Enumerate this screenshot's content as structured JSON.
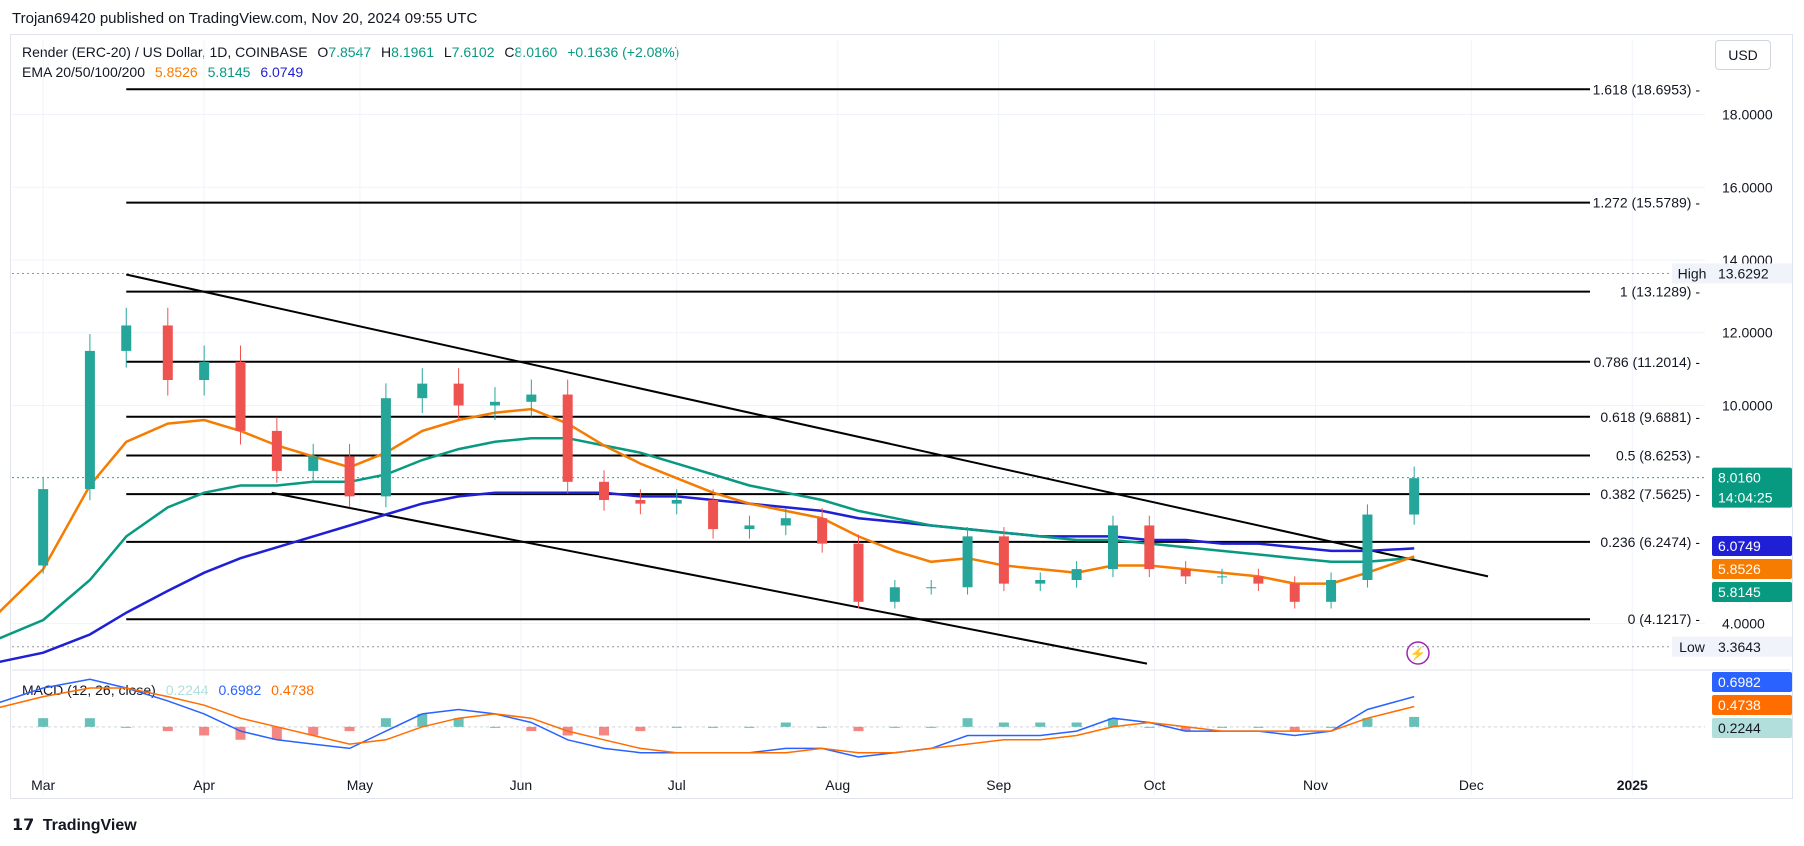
{
  "header": {
    "published": "Trojan69420 published on TradingView.com, Nov 20, 2024 09:55 UTC"
  },
  "legend": {
    "symbol": "Render (ERC-20) / US Dollar, 1D, COINBASE",
    "o_label": "O",
    "o": "7.8547",
    "h_label": "H",
    "h": "8.1961",
    "l_label": "L",
    "l": "7.6102",
    "c_label": "C",
    "c": "8.0160",
    "change": "+0.1636 (+2.08%)",
    "ema_label": "EMA 20/50/100/200",
    "ema20": "5.8526",
    "ema50": "5.8145",
    "ema100": "6.0749",
    "macd_label": "MACD (12, 26, close)",
    "macd_hist": "0.2244",
    "macd_line": "0.6982",
    "macd_signal": "0.4738"
  },
  "currency_button": "USD",
  "footer": {
    "brand": "TradingView"
  },
  "colors": {
    "up": "#26a69a",
    "down": "#ef5350",
    "ema20": "#f57c00",
    "ema50": "#089981",
    "ema100": "#1f1fd6",
    "macd": "#2962ff",
    "signal": "#ff6d00",
    "price_label": "#089981"
  },
  "chart_data": {
    "type": "line",
    "title": "Render (ERC-20) / US Dollar, 1D, COINBASE",
    "x_ticks": [
      "Mar",
      "Apr",
      "May",
      "Jun",
      "Jul",
      "Aug",
      "Sep",
      "Oct",
      "Nov",
      "Dec",
      "2025"
    ],
    "y_ticks": [
      "18.0000",
      "16.0000",
      "14.0000",
      "12.0000",
      "10.0000",
      "4.0000"
    ],
    "ylim": [
      3.0,
      19.5
    ],
    "fib_levels": [
      {
        "label": "1.618 (18.6953)",
        "value": 18.6953
      },
      {
        "label": "1.272 (15.5789)",
        "value": 15.5789
      },
      {
        "label": "1 (13.1289)",
        "value": 13.1289
      },
      {
        "label": "0.786 (11.2014)",
        "value": 11.2014
      },
      {
        "label": "0.618 (9.6881)",
        "value": 9.6881
      },
      {
        "label": "0.5 (8.6253)",
        "value": 8.6253
      },
      {
        "label": "0.382 (7.5625)",
        "value": 7.5625
      },
      {
        "label": "0.236 (6.2474)",
        "value": 6.2474
      },
      {
        "label": "0 (4.1217)",
        "value": 4.1217
      }
    ],
    "high": {
      "label": "High",
      "value": "13.6292"
    },
    "low": {
      "label": "Low",
      "value": "3.3643"
    },
    "last_price": "8.0160",
    "countdown": "14:04:25",
    "ema_labels": [
      {
        "value": "6.0749",
        "color": "#1f1fd6",
        "v": 6.0749
      },
      {
        "value": "5.8526",
        "color": "#f57c00",
        "v": 5.8526
      },
      {
        "value": "5.8145",
        "color": "#089981",
        "v": 5.8145
      }
    ],
    "dates": [
      "2024-02-20",
      "2024-03-01",
      "2024-03-10",
      "2024-03-17",
      "2024-03-25",
      "2024-04-01",
      "2024-04-08",
      "2024-04-15",
      "2024-04-22",
      "2024-04-29",
      "2024-05-06",
      "2024-05-13",
      "2024-05-20",
      "2024-05-27",
      "2024-06-03",
      "2024-06-10",
      "2024-06-17",
      "2024-06-24",
      "2024-07-01",
      "2024-07-08",
      "2024-07-15",
      "2024-07-22",
      "2024-07-29",
      "2024-08-05",
      "2024-08-12",
      "2024-08-19",
      "2024-08-26",
      "2024-09-02",
      "2024-09-09",
      "2024-09-16",
      "2024-09-23",
      "2024-09-30",
      "2024-10-07",
      "2024-10-14",
      "2024-10-21",
      "2024-10-28",
      "2024-11-04",
      "2024-11-11",
      "2024-11-20"
    ],
    "close": [
      5.6,
      7.7,
      11.5,
      12.2,
      10.7,
      11.2,
      9.3,
      8.2,
      8.6,
      7.5,
      10.2,
      10.6,
      10.0,
      10.1,
      10.3,
      7.9,
      7.4,
      7.3,
      7.4,
      6.6,
      6.7,
      6.9,
      6.2,
      4.6,
      5.0,
      5.0,
      6.4,
      5.1,
      5.2,
      5.5,
      6.7,
      5.5,
      5.3,
      5.3,
      5.1,
      4.6,
      5.2,
      7.0,
      8.0
    ],
    "ema20": [
      4.1,
      5.5,
      7.8,
      9.0,
      9.5,
      9.6,
      9.3,
      8.9,
      8.6,
      8.3,
      8.7,
      9.3,
      9.6,
      9.8,
      9.9,
      9.5,
      8.9,
      8.4,
      8.0,
      7.6,
      7.3,
      7.1,
      6.9,
      6.4,
      6.0,
      5.7,
      5.8,
      5.6,
      5.5,
      5.4,
      5.6,
      5.6,
      5.5,
      5.4,
      5.3,
      5.1,
      5.1,
      5.4,
      5.85
    ],
    "ema50": [
      3.5,
      4.1,
      5.2,
      6.4,
      7.2,
      7.6,
      7.8,
      7.8,
      7.9,
      7.9,
      8.1,
      8.5,
      8.8,
      9.0,
      9.1,
      9.1,
      8.9,
      8.7,
      8.4,
      8.1,
      7.8,
      7.6,
      7.4,
      7.1,
      6.9,
      6.7,
      6.6,
      6.5,
      6.4,
      6.3,
      6.3,
      6.2,
      6.1,
      6.0,
      5.9,
      5.8,
      5.7,
      5.7,
      5.81
    ],
    "ema100": [
      2.9,
      3.2,
      3.7,
      4.3,
      4.9,
      5.4,
      5.8,
      6.1,
      6.4,
      6.7,
      7.0,
      7.3,
      7.5,
      7.6,
      7.6,
      7.6,
      7.6,
      7.5,
      7.5,
      7.4,
      7.3,
      7.2,
      7.1,
      6.9,
      6.8,
      6.7,
      6.6,
      6.5,
      6.4,
      6.4,
      6.4,
      6.3,
      6.3,
      6.2,
      6.2,
      6.1,
      6.0,
      6.0,
      6.07
    ],
    "macd": [
      0.5,
      0.9,
      1.1,
      0.9,
      0.6,
      0.3,
      -0.1,
      -0.3,
      -0.4,
      -0.5,
      -0.1,
      0.3,
      0.4,
      0.3,
      0.1,
      -0.3,
      -0.5,
      -0.6,
      -0.6,
      -0.6,
      -0.6,
      -0.5,
      -0.5,
      -0.7,
      -0.6,
      -0.5,
      -0.2,
      -0.2,
      -0.2,
      -0.1,
      0.2,
      0.1,
      -0.1,
      -0.1,
      -0.1,
      -0.2,
      -0.1,
      0.4,
      0.7
    ],
    "signal": [
      0.4,
      0.7,
      0.9,
      0.9,
      0.7,
      0.5,
      0.2,
      0.0,
      -0.2,
      -0.4,
      -0.3,
      0.0,
      0.2,
      0.3,
      0.2,
      -0.1,
      -0.3,
      -0.5,
      -0.6,
      -0.6,
      -0.6,
      -0.6,
      -0.5,
      -0.6,
      -0.6,
      -0.5,
      -0.4,
      -0.3,
      -0.3,
      -0.2,
      0.0,
      0.1,
      0.0,
      -0.1,
      -0.1,
      -0.1,
      -0.1,
      0.2,
      0.47
    ],
    "macd_ticks": [
      "0.0000"
    ],
    "macd_ylim": [
      -1.0,
      1.2
    ]
  }
}
